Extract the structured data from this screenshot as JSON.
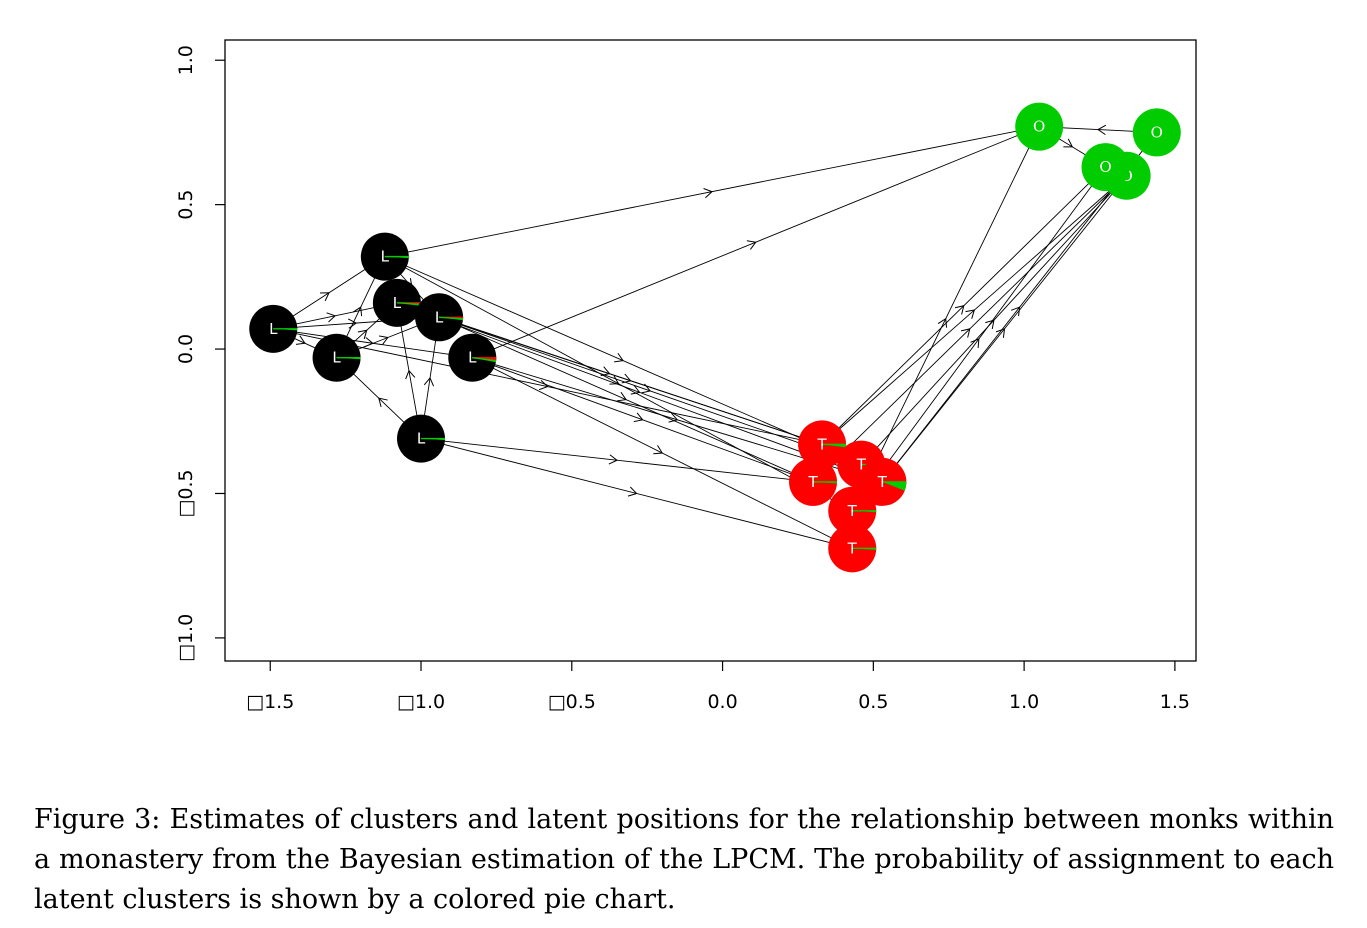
{
  "caption": "Figure 3: Estimates of clusters and latent positions for the relationship between monks within a monastery from the Bayesian estimation of the LPCM. The probability of assignment to each latent clusters is shown by a colored pie chart.",
  "chart_data": {
    "type": "scatter",
    "title": "",
    "xlabel": "",
    "ylabel": "",
    "xlim": [
      -1.65,
      1.57
    ],
    "ylim": [
      -1.08,
      1.07
    ],
    "grid": false,
    "x_ticks": [
      {
        "value": -1.5,
        "label": "□1.5"
      },
      {
        "value": -1.0,
        "label": "□1.0"
      },
      {
        "value": -0.5,
        "label": "□0.5"
      },
      {
        "value": 0.0,
        "label": "0.0"
      },
      {
        "value": 0.5,
        "label": "0.5"
      },
      {
        "value": 1.0,
        "label": "1.0"
      },
      {
        "value": 1.5,
        "label": "1.5"
      }
    ],
    "y_ticks": [
      {
        "value": 1.0,
        "label": "1.0"
      },
      {
        "value": 0.5,
        "label": "0.5"
      },
      {
        "value": 0.0,
        "label": "0.0"
      },
      {
        "value": -0.5,
        "label": "□0.5"
      },
      {
        "value": -1.0,
        "label": "□1.0"
      }
    ],
    "cluster_colors": {
      "L": "#000000",
      "T": "#ff0000",
      "O": "#00cc00"
    },
    "nodes": [
      {
        "label": "L",
        "cluster": "L",
        "x": -1.49,
        "y": 0.07,
        "pie": {
          "L": 0.99,
          "T": 0.0,
          "O": 0.01
        }
      },
      {
        "label": "L",
        "cluster": "L",
        "x": -1.28,
        "y": -0.03,
        "pie": {
          "L": 0.99,
          "T": 0.0,
          "O": 0.01
        }
      },
      {
        "label": "L",
        "cluster": "L",
        "x": -1.12,
        "y": 0.32,
        "pie": {
          "L": 0.99,
          "T": 0.0,
          "O": 0.01
        }
      },
      {
        "label": "L",
        "cluster": "L",
        "x": -1.08,
        "y": 0.16,
        "pie": {
          "L": 0.98,
          "T": 0.01,
          "O": 0.01
        }
      },
      {
        "label": "L",
        "cluster": "L",
        "x": -0.94,
        "y": 0.11,
        "pie": {
          "L": 0.98,
          "T": 0.01,
          "O": 0.01
        }
      },
      {
        "label": "L",
        "cluster": "L",
        "x": -0.83,
        "y": -0.03,
        "pie": {
          "L": 0.97,
          "T": 0.02,
          "O": 0.01
        }
      },
      {
        "label": "L",
        "cluster": "L",
        "x": -1.0,
        "y": -0.31,
        "pie": {
          "L": 0.99,
          "T": 0.0,
          "O": 0.01
        }
      },
      {
        "label": "T",
        "cluster": "T",
        "x": 0.33,
        "y": -0.33,
        "pie": {
          "L": 0.0,
          "T": 0.98,
          "O": 0.02
        }
      },
      {
        "label": "T",
        "cluster": "T",
        "x": 0.46,
        "y": -0.4,
        "pie": {
          "L": 0.0,
          "T": 0.99,
          "O": 0.01
        }
      },
      {
        "label": "T",
        "cluster": "T",
        "x": 0.3,
        "y": -0.46,
        "pie": {
          "L": 0.0,
          "T": 0.99,
          "O": 0.01
        }
      },
      {
        "label": "T",
        "cluster": "T",
        "x": 0.53,
        "y": -0.46,
        "pie": {
          "L": 0.0,
          "T": 0.94,
          "O": 0.06
        }
      },
      {
        "label": "T",
        "cluster": "T",
        "x": 0.43,
        "y": -0.56,
        "pie": {
          "L": 0.0,
          "T": 0.99,
          "O": 0.01
        }
      },
      {
        "label": "T",
        "cluster": "T",
        "x": 0.43,
        "y": -0.69,
        "pie": {
          "L": 0.0,
          "T": 0.99,
          "O": 0.01
        }
      },
      {
        "label": "O",
        "cluster": "O",
        "x": 1.05,
        "y": 0.77,
        "pie": {
          "L": 0.0,
          "T": 0.0,
          "O": 1.0
        }
      },
      {
        "label": "O",
        "cluster": "O",
        "x": 1.44,
        "y": 0.75,
        "pie": {
          "L": 0.0,
          "T": 0.0,
          "O": 1.0
        }
      },
      {
        "label": "O",
        "cluster": "O",
        "x": 1.34,
        "y": 0.6,
        "pie": {
          "L": 0.0,
          "T": 0.0,
          "O": 1.0
        }
      },
      {
        "label": "O",
        "cluster": "O",
        "x": 1.27,
        "y": 0.63,
        "pie": {
          "L": 0.0,
          "T": 0.0,
          "O": 1.0
        }
      }
    ],
    "edges": [
      [
        2,
        13
      ],
      [
        5,
        13
      ],
      [
        0,
        2
      ],
      [
        0,
        3
      ],
      [
        0,
        4
      ],
      [
        0,
        5
      ],
      [
        0,
        1
      ],
      [
        1,
        3
      ],
      [
        1,
        4
      ],
      [
        1,
        2
      ],
      [
        3,
        4
      ],
      [
        6,
        4
      ],
      [
        6,
        3
      ],
      [
        6,
        1
      ],
      [
        2,
        4
      ],
      [
        2,
        11
      ],
      [
        3,
        7
      ],
      [
        4,
        7
      ],
      [
        4,
        9
      ],
      [
        5,
        9
      ],
      [
        5,
        10
      ],
      [
        0,
        7
      ],
      [
        6,
        9
      ],
      [
        6,
        12
      ],
      [
        5,
        12
      ],
      [
        2,
        8
      ],
      [
        7,
        16
      ],
      [
        8,
        15
      ],
      [
        10,
        14
      ],
      [
        11,
        13
      ],
      [
        9,
        15
      ],
      [
        7,
        15
      ],
      [
        10,
        15
      ],
      [
        11,
        16
      ],
      [
        14,
        13
      ],
      [
        13,
        16
      ],
      [
        3,
        10
      ],
      [
        4,
        8
      ]
    ]
  }
}
